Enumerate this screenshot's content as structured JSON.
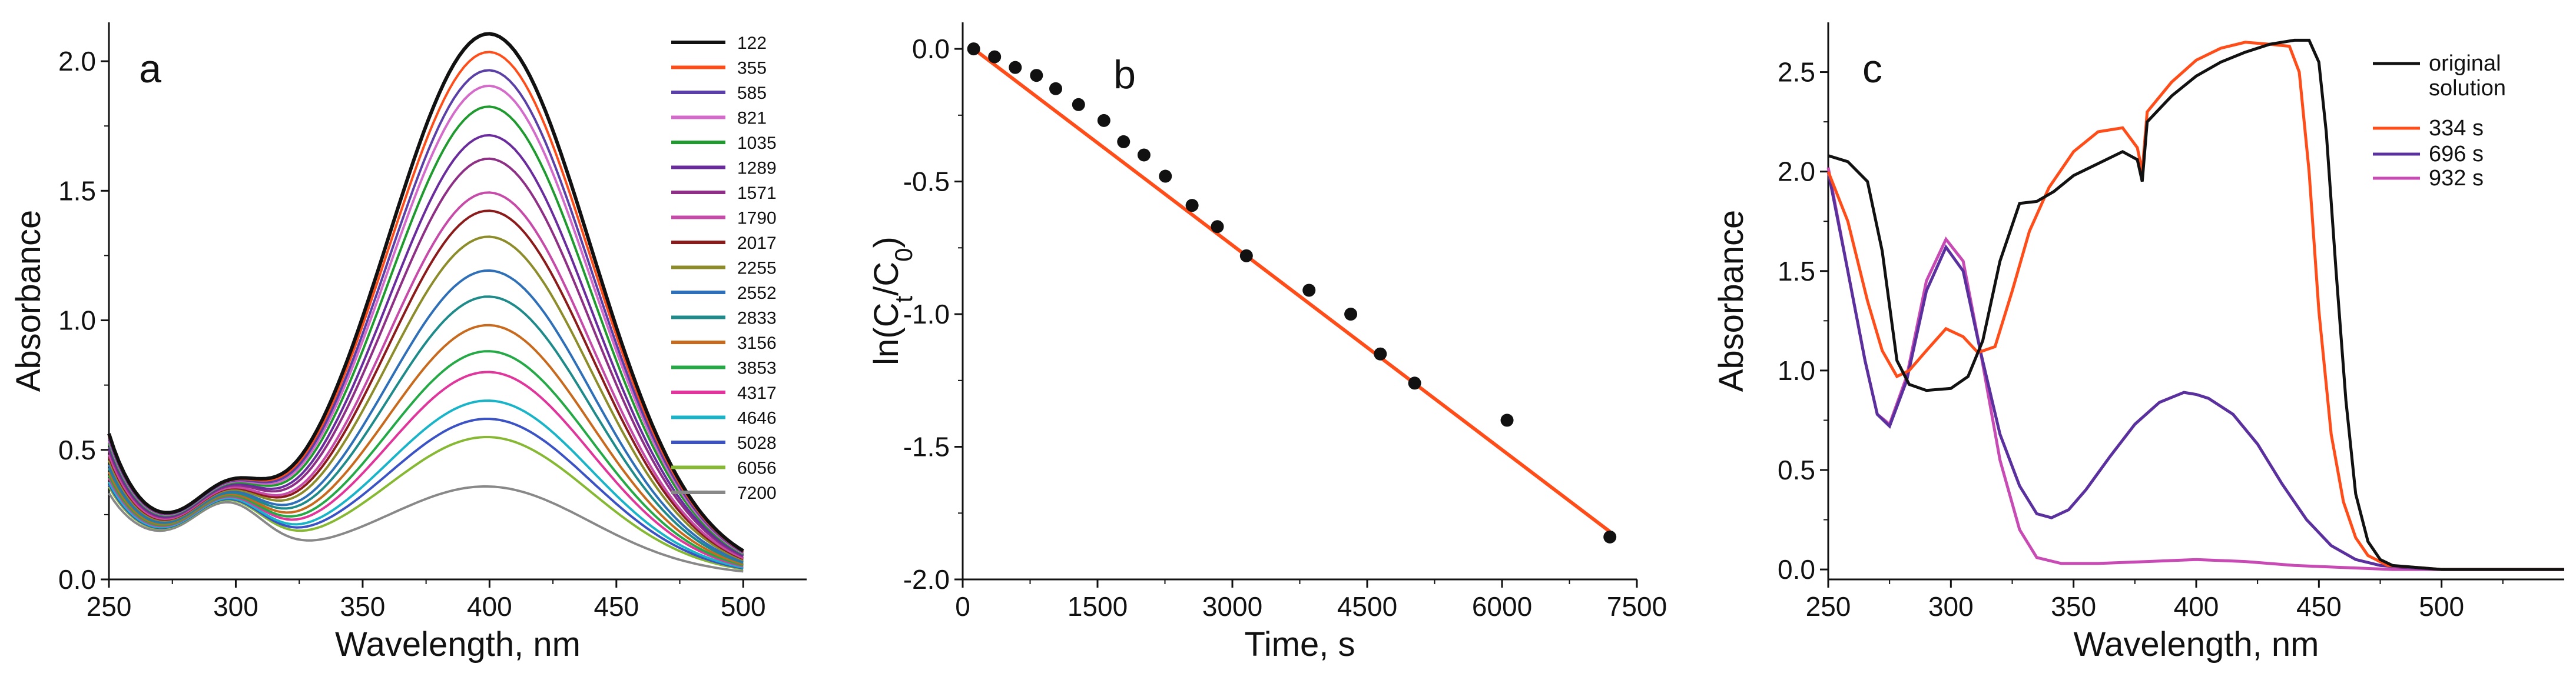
{
  "chart_data": [
    {
      "panel": "a",
      "type": "line",
      "xlabel": "Wavelength, nm",
      "ylabel": "Absorbance",
      "xlim": [
        250,
        525
      ],
      "ylim": [
        0,
        2.15
      ],
      "xticks": [
        "250",
        "300",
        "350",
        "400",
        "450",
        "500"
      ],
      "yticks": [
        "0.0",
        "0.5",
        "1.0",
        "1.5",
        "2.0"
      ],
      "legend_position": "top-right",
      "series": [
        {
          "name": "122",
          "color": "#111111",
          "peak": 2.06
        },
        {
          "name": "355",
          "color": "#ff4d1a",
          "peak": 1.99
        },
        {
          "name": "585",
          "color": "#5a3fa6",
          "peak": 1.92
        },
        {
          "name": "821",
          "color": "#d46ac9",
          "peak": 1.86
        },
        {
          "name": "1035",
          "color": "#1f9a2e",
          "peak": 1.78
        },
        {
          "name": "1289",
          "color": "#6a2c9c",
          "peak": 1.67
        },
        {
          "name": "1571",
          "color": "#8e2f86",
          "peak": 1.58
        },
        {
          "name": "1790",
          "color": "#c64aa8",
          "peak": 1.45
        },
        {
          "name": "2017",
          "color": "#8b1a1a",
          "peak": 1.38
        },
        {
          "name": "2255",
          "color": "#8c8c2a",
          "peak": 1.28
        },
        {
          "name": "2552",
          "color": "#2e6fb7",
          "peak": 1.15
        },
        {
          "name": "2833",
          "color": "#1f8a8a",
          "peak": 1.05
        },
        {
          "name": "3156",
          "color": "#c86a1e",
          "peak": 0.94
        },
        {
          "name": "3853",
          "color": "#25a846",
          "peak": 0.84
        },
        {
          "name": "4317",
          "color": "#e0359a",
          "peak": 0.76
        },
        {
          "name": "4646",
          "color": "#1ab4c8",
          "peak": 0.65
        },
        {
          "name": "5028",
          "color": "#3a52c4",
          "peak": 0.58
        },
        {
          "name": "6056",
          "color": "#86b833",
          "peak": 0.51
        },
        {
          "name": "7200",
          "color": "#888888",
          "peak": 0.32
        }
      ]
    },
    {
      "panel": "b",
      "type": "scatter",
      "xlabel": "Time, s",
      "ylabel": "ln(Ct/C0)",
      "ylabel_parts": {
        "prefix": "ln(C",
        "sub1": "t",
        "mid": "/C",
        "sub2": "0",
        "suffix": ")"
      },
      "xlim": [
        0,
        7500
      ],
      "ylim": [
        -2.0,
        0.1
      ],
      "xticks": [
        "0",
        "1500",
        "3000",
        "4500",
        "6000",
        "7500"
      ],
      "yticks": [
        "0.0",
        "-0.5",
        "-1.0",
        "-1.5",
        "-2.0"
      ],
      "points": {
        "x": [
          122,
          355,
          585,
          821,
          1035,
          1289,
          1571,
          1790,
          2017,
          2255,
          2552,
          2833,
          3156,
          3853,
          4317,
          4646,
          5028,
          6056,
          7200
        ],
        "y": [
          0.0,
          -0.03,
          -0.07,
          -0.1,
          -0.15,
          -0.21,
          -0.27,
          -0.35,
          -0.4,
          -0.48,
          -0.59,
          -0.67,
          -0.78,
          -0.91,
          -1.0,
          -1.15,
          -1.26,
          -1.4,
          -1.84
        ]
      },
      "fit_line": {
        "x": [
          122,
          7200
        ],
        "y": [
          0.0,
          -1.82
        ],
        "color": "#ff4d1a"
      }
    },
    {
      "panel": "c",
      "type": "line",
      "xlabel": "Wavelength, nm",
      "ylabel": "Absorbance",
      "xlim": [
        250,
        550
      ],
      "ylim": [
        -0.05,
        2.75
      ],
      "xticks": [
        "250",
        "300",
        "350",
        "400",
        "450",
        "500"
      ],
      "yticks": [
        "0.0",
        "0.5",
        "1.0",
        "1.5",
        "2.0",
        "2.5"
      ],
      "legend_position": "top-right",
      "series": [
        {
          "name": "original solution",
          "label_lines": [
            "original",
            "solution"
          ],
          "color": "#111111",
          "x": [
            250,
            258,
            266,
            272,
            278,
            283,
            290,
            300,
            307,
            313,
            320,
            328,
            335,
            342,
            350,
            360,
            370,
            376,
            378,
            380,
            390,
            400,
            410,
            420,
            430,
            440,
            446,
            450,
            453,
            457,
            461,
            465,
            470,
            475,
            480,
            490,
            500,
            520,
            550
          ],
          "y": [
            2.08,
            2.05,
            1.95,
            1.6,
            1.05,
            0.93,
            0.9,
            0.91,
            0.97,
            1.15,
            1.55,
            1.84,
            1.85,
            1.9,
            1.98,
            2.04,
            2.1,
            2.06,
            1.95,
            2.25,
            2.38,
            2.48,
            2.55,
            2.6,
            2.64,
            2.66,
            2.66,
            2.55,
            2.2,
            1.5,
            0.85,
            0.38,
            0.14,
            0.05,
            0.02,
            0.01,
            0.0,
            0.0,
            0.0
          ]
        },
        {
          "name": "334 s",
          "color": "#ff4d1a",
          "x": [
            250,
            258,
            266,
            272,
            278,
            283,
            290,
            298,
            305,
            311,
            318,
            325,
            332,
            340,
            350,
            360,
            370,
            376,
            378,
            380,
            390,
            400,
            410,
            420,
            430,
            438,
            442,
            446,
            450,
            455,
            460,
            465,
            470,
            478,
            490,
            500,
            520,
            550
          ],
          "y": [
            2.0,
            1.75,
            1.35,
            1.1,
            0.97,
            1.0,
            1.1,
            1.21,
            1.17,
            1.09,
            1.12,
            1.4,
            1.7,
            1.92,
            2.1,
            2.2,
            2.22,
            2.12,
            2.0,
            2.3,
            2.45,
            2.56,
            2.62,
            2.65,
            2.64,
            2.63,
            2.5,
            2.0,
            1.3,
            0.68,
            0.34,
            0.16,
            0.07,
            0.02,
            0.01,
            0.0,
            0.0,
            0.0
          ]
        },
        {
          "name": "696 s",
          "color": "#5a2f9e",
          "x": [
            250,
            258,
            265,
            270,
            275,
            282,
            290,
            298,
            305,
            312,
            320,
            328,
            335,
            341,
            348,
            355,
            365,
            375,
            385,
            395,
            400,
            405,
            415,
            425,
            435,
            445,
            455,
            465,
            475,
            485,
            500,
            520,
            550
          ],
          "y": [
            2.0,
            1.5,
            1.05,
            0.78,
            0.72,
            0.95,
            1.4,
            1.62,
            1.5,
            1.1,
            0.68,
            0.42,
            0.28,
            0.26,
            0.3,
            0.4,
            0.57,
            0.73,
            0.84,
            0.89,
            0.88,
            0.86,
            0.78,
            0.63,
            0.43,
            0.25,
            0.12,
            0.05,
            0.02,
            0.01,
            0.0,
            0.0,
            0.0
          ]
        },
        {
          "name": "932 s",
          "color": "#c84ab4",
          "x": [
            250,
            258,
            265,
            270,
            275,
            282,
            290,
            298,
            305,
            312,
            320,
            328,
            335,
            345,
            360,
            380,
            400,
            420,
            440,
            460,
            480,
            500,
            520,
            550
          ],
          "y": [
            2.02,
            1.5,
            1.05,
            0.78,
            0.73,
            0.97,
            1.45,
            1.66,
            1.55,
            1.1,
            0.55,
            0.2,
            0.06,
            0.03,
            0.03,
            0.04,
            0.05,
            0.04,
            0.02,
            0.01,
            0.0,
            0.0,
            0.0,
            0.0
          ]
        }
      ]
    }
  ]
}
